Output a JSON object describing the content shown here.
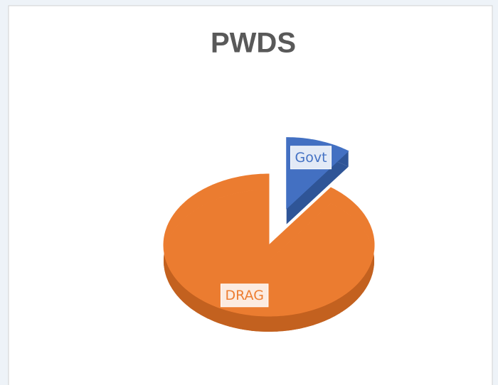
{
  "chart_data": {
    "type": "pie",
    "title": "PWDS",
    "categories": [
      "Govt",
      "DRAG"
    ],
    "values": [
      10,
      90
    ],
    "colors": [
      "#4472c4",
      "#ed7d31"
    ],
    "side_colors": [
      "#2f5597",
      "#c3611f"
    ],
    "exploded": [
      true,
      false
    ]
  }
}
